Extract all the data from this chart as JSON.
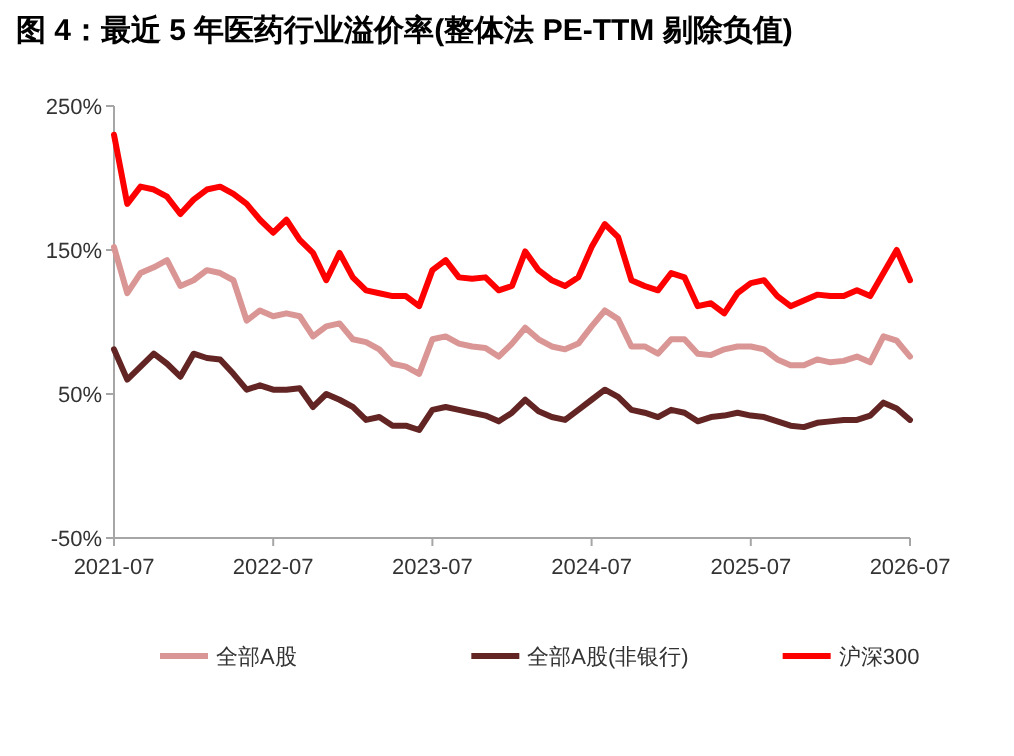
{
  "chart_data": {
    "type": "line",
    "title": "图 4：最近 5 年医药行业溢价率(整体法 PE-TTM 剔除负值)",
    "x": [
      "2021-07",
      "2021-08",
      "2021-09",
      "2021-10",
      "2021-11",
      "2021-12",
      "2022-01",
      "2022-02",
      "2022-03",
      "2022-04",
      "2022-05",
      "2022-06",
      "2022-07",
      "2022-08",
      "2022-09",
      "2022-10",
      "2022-11",
      "2022-12",
      "2023-01",
      "2023-02",
      "2023-03",
      "2023-04",
      "2023-05",
      "2023-06",
      "2023-07",
      "2023-08",
      "2023-09",
      "2023-10",
      "2023-11",
      "2023-12",
      "2024-01",
      "2024-02",
      "2024-03",
      "2024-04",
      "2024-05",
      "2024-06",
      "2024-07",
      "2024-08",
      "2024-09",
      "2024-10",
      "2024-11",
      "2024-12",
      "2025-01",
      "2025-02",
      "2025-03",
      "2025-04",
      "2025-05",
      "2025-06",
      "2025-07",
      "2025-08",
      "2025-09",
      "2025-10",
      "2025-11",
      "2025-12",
      "2026-01",
      "2026-02",
      "2026-03",
      "2026-04",
      "2026-05",
      "2026-06",
      "2026-07"
    ],
    "series": [
      {
        "name": "全部A股",
        "color": "#d99694",
        "values": [
          152,
          120,
          134,
          138,
          143,
          125,
          129,
          136,
          134,
          129,
          101,
          108,
          104,
          106,
          104,
          90,
          97,
          99,
          88,
          86,
          81,
          71,
          69,
          64,
          88,
          90,
          85,
          83,
          82,
          76,
          85,
          96,
          88,
          83,
          81,
          85,
          97,
          108,
          102,
          83,
          83,
          78,
          88,
          88,
          78,
          77,
          81,
          83,
          83,
          81,
          74,
          70,
          70,
          74,
          72,
          73,
          76,
          72,
          90,
          87,
          76
        ]
      },
      {
        "name": "全部A股(非银行)",
        "color": "#632523",
        "values": [
          81,
          60,
          69,
          78,
          71,
          62,
          78,
          75,
          74,
          64,
          53,
          56,
          53,
          53,
          54,
          41,
          50,
          46,
          41,
          32,
          34,
          28,
          28,
          25,
          39,
          41,
          39,
          37,
          35,
          31,
          37,
          46,
          38,
          34,
          32,
          39,
          46,
          53,
          48,
          39,
          37,
          34,
          39,
          37,
          31,
          34,
          35,
          37,
          35,
          34,
          31,
          28,
          27,
          30,
          31,
          32,
          32,
          35,
          44,
          40,
          32
        ]
      },
      {
        "name": "沪深300",
        "color": "#ff0000",
        "values": [
          230,
          182,
          194,
          192,
          187,
          175,
          185,
          192,
          194,
          189,
          182,
          171,
          162,
          171,
          157,
          148,
          129,
          148,
          131,
          122,
          120,
          118,
          118,
          111,
          136,
          143,
          131,
          130,
          131,
          122,
          125,
          149,
          136,
          129,
          125,
          131,
          152,
          168,
          159,
          129,
          125,
          122,
          134,
          131,
          111,
          113,
          106,
          120,
          127,
          129,
          118,
          111,
          115,
          119,
          118,
          118,
          122,
          118,
          134,
          150,
          129
        ]
      }
    ],
    "xlim": [
      "2021-07",
      "2026-07"
    ],
    "xticks": [
      "2021-07",
      "2022-07",
      "2023-07",
      "2024-07",
      "2025-07",
      "2026-07"
    ],
    "ylim": [
      -50,
      250
    ],
    "yticks": [
      {
        "value": -50,
        "label": "-50%"
      },
      {
        "value": 50,
        "label": "50%"
      },
      {
        "value": 150,
        "label": "150%"
      },
      {
        "value": 250,
        "label": "250%"
      }
    ],
    "legend": "bottom"
  }
}
